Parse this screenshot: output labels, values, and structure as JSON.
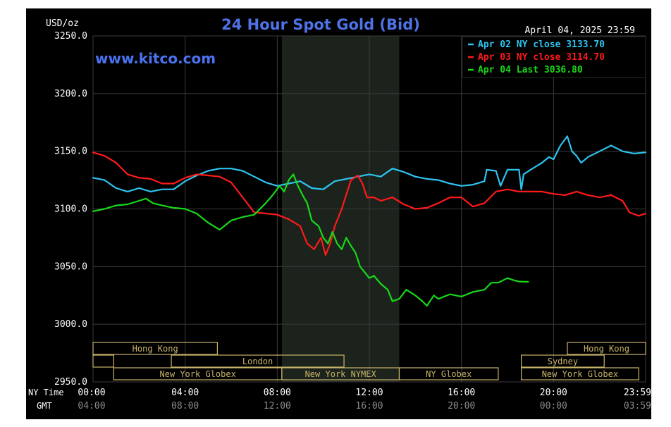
{
  "chart_data": {
    "type": "line",
    "title": "24 Hour Spot Gold (Bid)",
    "watermark": "www.kitco.com",
    "date_label": "April 04, 2025 23:59",
    "y_unit_label": "USD/oz",
    "ylim": [
      2950,
      3250
    ],
    "y_ticks": [
      "3250.0",
      "3200.0",
      "3150.0",
      "3100.0",
      "3050.0",
      "3000.0",
      "2950.0"
    ],
    "x_axis_label_ny": "NY Time",
    "x_axis_label_gmt": "GMT",
    "x_ticks_ny": [
      "00:00",
      "04:00",
      "08:00",
      "12:00",
      "16:00",
      "20:00",
      "23:59"
    ],
    "x_ticks_gmt": [
      "04:00",
      "08:00",
      "12:00",
      "16:00",
      "20:00",
      "00:00",
      "03:59"
    ],
    "xlim_hours": [
      0,
      24
    ],
    "grid": true,
    "legend_position": "top-right",
    "highlight_band_hours": [
      8.2,
      13.3
    ],
    "colors": {
      "background": "#000000",
      "grid": "#3a3a3a",
      "title": "#4f73e8",
      "watermark": "#4a72f0",
      "axis_text": "#ffffff",
      "gmt_text": "#8a8a8a",
      "band": "#1c231c",
      "session": "#c8b46a"
    },
    "series": [
      {
        "name": "Apr 02 NY close 3133.70",
        "color": "#2ec4f0",
        "points": [
          [
            0,
            3127
          ],
          [
            0.5,
            3125
          ],
          [
            1,
            3118
          ],
          [
            1.5,
            3115
          ],
          [
            2,
            3118
          ],
          [
            2.5,
            3115
          ],
          [
            3,
            3117
          ],
          [
            3.5,
            3117
          ],
          [
            4,
            3124
          ],
          [
            4.5,
            3129
          ],
          [
            5,
            3133
          ],
          [
            5.5,
            3135
          ],
          [
            6,
            3135
          ],
          [
            6.5,
            3133
          ],
          [
            7,
            3128
          ],
          [
            7.5,
            3123
          ],
          [
            8,
            3120
          ],
          [
            8.5,
            3122
          ],
          [
            9,
            3124
          ],
          [
            9.5,
            3118
          ],
          [
            10,
            3117
          ],
          [
            10.5,
            3124
          ],
          [
            11,
            3126
          ],
          [
            11.5,
            3128
          ],
          [
            12,
            3130
          ],
          [
            12.5,
            3128
          ],
          [
            13,
            3135
          ],
          [
            13.5,
            3132
          ],
          [
            14,
            3128
          ],
          [
            14.5,
            3126
          ],
          [
            15,
            3125
          ],
          [
            15.5,
            3122
          ],
          [
            16,
            3120
          ],
          [
            16.5,
            3121
          ],
          [
            17,
            3124
          ],
          [
            17.1,
            3134
          ],
          [
            17.5,
            3133
          ],
          [
            17.7,
            3120
          ],
          [
            18,
            3134
          ],
          [
            18.5,
            3134
          ],
          [
            18.6,
            3117
          ],
          [
            18.7,
            3130
          ],
          [
            19,
            3134
          ],
          [
            19.5,
            3140
          ],
          [
            19.8,
            3145
          ],
          [
            20,
            3143
          ],
          [
            20.3,
            3155
          ],
          [
            20.6,
            3163
          ],
          [
            20.8,
            3150
          ],
          [
            21,
            3146
          ],
          [
            21.2,
            3140
          ],
          [
            21.5,
            3145
          ],
          [
            22,
            3150
          ],
          [
            22.5,
            3155
          ],
          [
            23,
            3150
          ],
          [
            23.5,
            3148
          ],
          [
            24,
            3149
          ]
        ]
      },
      {
        "name": "Apr 03 NY close 3114.70",
        "color": "#ff1a1a",
        "points": [
          [
            0,
            3149
          ],
          [
            0.5,
            3146
          ],
          [
            1,
            3140
          ],
          [
            1.5,
            3130
          ],
          [
            2,
            3127
          ],
          [
            2.5,
            3126
          ],
          [
            3,
            3122
          ],
          [
            3.5,
            3122
          ],
          [
            4,
            3127
          ],
          [
            4.5,
            3130
          ],
          [
            5,
            3129
          ],
          [
            5.5,
            3128
          ],
          [
            6,
            3123
          ],
          [
            6.5,
            3110
          ],
          [
            7,
            3097
          ],
          [
            7.5,
            3096
          ],
          [
            8,
            3095
          ],
          [
            8.5,
            3091
          ],
          [
            9,
            3085
          ],
          [
            9.3,
            3070
          ],
          [
            9.6,
            3065
          ],
          [
            9.9,
            3075
          ],
          [
            10.1,
            3060
          ],
          [
            10.3,
            3070
          ],
          [
            10.5,
            3085
          ],
          [
            10.8,
            3100
          ],
          [
            11.2,
            3125
          ],
          [
            11.5,
            3129
          ],
          [
            11.7,
            3122
          ],
          [
            11.9,
            3110
          ],
          [
            12.2,
            3110
          ],
          [
            12.5,
            3107
          ],
          [
            13,
            3110
          ],
          [
            13.5,
            3104
          ],
          [
            14,
            3100
          ],
          [
            14.5,
            3101
          ],
          [
            15,
            3105
          ],
          [
            15.5,
            3110
          ],
          [
            16,
            3110
          ],
          [
            16.5,
            3102
          ],
          [
            17,
            3105
          ],
          [
            17.5,
            3115
          ],
          [
            18,
            3117
          ],
          [
            18.5,
            3115
          ],
          [
            19,
            3115
          ],
          [
            19.5,
            3115
          ],
          [
            20,
            3113
          ],
          [
            20.5,
            3112
          ],
          [
            21,
            3115
          ],
          [
            21.5,
            3112
          ],
          [
            22,
            3110
          ],
          [
            22.5,
            3112
          ],
          [
            23,
            3107
          ],
          [
            23.3,
            3097
          ],
          [
            23.7,
            3094
          ],
          [
            24,
            3096
          ]
        ]
      },
      {
        "name": "Apr 04 Last 3036.80",
        "color": "#18d818",
        "points": [
          [
            0,
            3098
          ],
          [
            0.5,
            3100
          ],
          [
            1,
            3103
          ],
          [
            1.5,
            3104
          ],
          [
            2,
            3107
          ],
          [
            2.3,
            3109
          ],
          [
            2.6,
            3105
          ],
          [
            3,
            3103
          ],
          [
            3.5,
            3101
          ],
          [
            4,
            3100
          ],
          [
            4.5,
            3096
          ],
          [
            5,
            3088
          ],
          [
            5.5,
            3082
          ],
          [
            6,
            3090
          ],
          [
            6.5,
            3093
          ],
          [
            7,
            3095
          ],
          [
            7.5,
            3105
          ],
          [
            7.8,
            3112
          ],
          [
            8.1,
            3120
          ],
          [
            8.3,
            3115
          ],
          [
            8.5,
            3125
          ],
          [
            8.7,
            3130
          ],
          [
            8.9,
            3120
          ],
          [
            9.1,
            3112
          ],
          [
            9.3,
            3105
          ],
          [
            9.5,
            3090
          ],
          [
            9.8,
            3085
          ],
          [
            10,
            3075
          ],
          [
            10.2,
            3070
          ],
          [
            10.4,
            3080
          ],
          [
            10.6,
            3070
          ],
          [
            10.8,
            3065
          ],
          [
            11,
            3075
          ],
          [
            11.2,
            3068
          ],
          [
            11.4,
            3062
          ],
          [
            11.6,
            3050
          ],
          [
            11.8,
            3045
          ],
          [
            12,
            3040
          ],
          [
            12.2,
            3042
          ],
          [
            12.5,
            3035
          ],
          [
            12.8,
            3030
          ],
          [
            13,
            3020
          ],
          [
            13.3,
            3022
          ],
          [
            13.6,
            3030
          ],
          [
            14,
            3025
          ],
          [
            14.3,
            3020
          ],
          [
            14.5,
            3016
          ],
          [
            14.8,
            3025
          ],
          [
            15,
            3022
          ],
          [
            15.5,
            3026
          ],
          [
            16,
            3024
          ],
          [
            16.5,
            3028
          ],
          [
            17,
            3030
          ],
          [
            17.3,
            3036
          ],
          [
            17.6,
            3036
          ],
          [
            18,
            3040
          ],
          [
            18.3,
            3038
          ],
          [
            18.5,
            3037
          ],
          [
            18.9,
            3036.8
          ]
        ]
      }
    ],
    "sessions": [
      {
        "label": "Hong Kong",
        "start": 0,
        "end": 5.4,
        "row": 0
      },
      {
        "label": "",
        "start": 0,
        "end": 0.9,
        "row": 1
      },
      {
        "label": "London",
        "start": 3.4,
        "end": 10.9,
        "row": 1
      },
      {
        "label": "New York Globex",
        "start": 0.9,
        "end": 8.2,
        "row": 2
      },
      {
        "label": "New York NYMEX",
        "start": 8.2,
        "end": 13.3,
        "row": 2
      },
      {
        "label": "NY Globex",
        "start": 13.3,
        "end": 17.6,
        "row": 2
      },
      {
        "label": "Hong Kong",
        "start": 20.6,
        "end": 24,
        "row": 0
      },
      {
        "label": "Sydney",
        "start": 18.6,
        "end": 22.2,
        "row": 1
      },
      {
        "label": "New York Globex",
        "start": 18.6,
        "end": 23.7,
        "row": 2
      }
    ]
  }
}
